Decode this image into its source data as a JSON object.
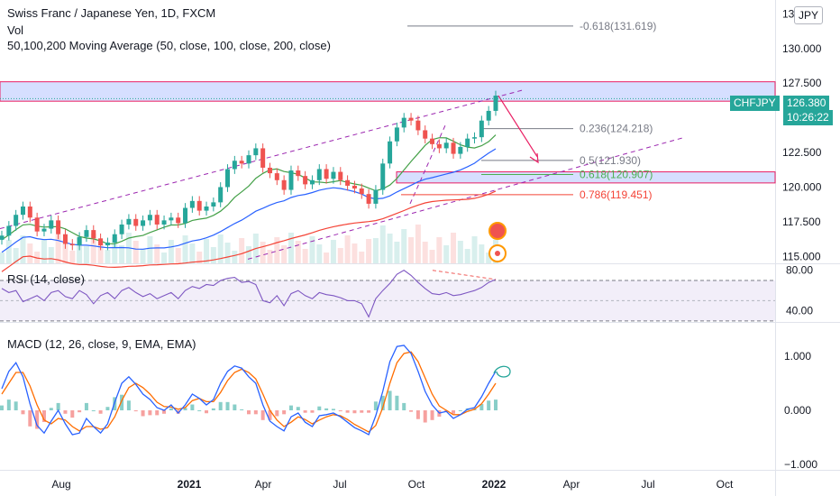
{
  "header": {
    "symbol_title": "Swiss Franc / Japanese Yen, 1D, FXCM",
    "vol_label": "Vol",
    "ma_label": "50,100,200 Moving Average (50, close, 100, close, 200, close)",
    "currency_button": "JPY"
  },
  "price_tag": {
    "symbol": "CHFJPY",
    "price": "126.380",
    "countdown": "10:26:22",
    "color": "#26a69a"
  },
  "colors": {
    "up": "#26a69a",
    "down": "#ef5350",
    "zone_fill": "#d1dbff",
    "zone_border": "#e91e63",
    "channel": "#9c27b0",
    "ma50": "#43a047",
    "ma100": "#2962ff",
    "ma200": "#f44336",
    "rsi": "#7e57c2",
    "macd": "#2962ff",
    "signal": "#ff6d00",
    "arrow": "#e91e63"
  },
  "chart_data": [
    {
      "type": "candlestick",
      "title": "Swiss Franc / Japanese Yen, 1D, FXCM",
      "ylim": [
        114.5,
        133.5
      ],
      "y_ticks": [
        "115.000",
        "117.500",
        "120.000",
        "122.500",
        "125.000",
        "127.500",
        "130.000",
        "132.500"
      ],
      "x_ticks": [
        "Aug",
        "2021",
        "Apr",
        "Jul",
        "Oct",
        "2022",
        "Apr",
        "Jul",
        "Oct"
      ],
      "last_price": 126.38,
      "resistance_zone": [
        126.2,
        127.6
      ],
      "support_zone": [
        120.3,
        121.1
      ],
      "fibonacci": [
        {
          "label": "-0.618(131.619)",
          "value": 131.619,
          "color": "#787b86"
        },
        {
          "label": "0.236(124.218)",
          "value": 124.218,
          "color": "#787b86"
        },
        {
          "label": "0.5(121.930)",
          "value": 121.93,
          "color": "#787b86"
        },
        {
          "label": "0.618(120.907)",
          "value": 120.907,
          "color": "#4caf50"
        },
        {
          "label": "0.786(119.451)",
          "value": 119.451,
          "color": "#f44336"
        }
      ],
      "series": [
        {
          "name": "MA 50",
          "color": "#43a047"
        },
        {
          "name": "MA 100",
          "color": "#2962ff"
        },
        {
          "name": "MA 200",
          "color": "#f44336"
        }
      ],
      "closes": [
        116.5,
        117.2,
        118.0,
        118.6,
        117.8,
        116.8,
        117.0,
        117.6,
        116.6,
        115.9,
        115.8,
        116.4,
        116.9,
        116.3,
        115.8,
        116.0,
        116.6,
        117.3,
        117.7,
        117.2,
        117.6,
        118.0,
        117.3,
        117.6,
        117.8,
        117.4,
        118.5,
        119.0,
        118.3,
        118.6,
        118.9,
        120.0,
        121.3,
        121.9,
        121.7,
        122.3,
        122.8,
        121.4,
        121.0,
        120.5,
        119.8,
        121.2,
        120.8,
        120.2,
        120.5,
        121.3,
        120.6,
        121.1,
        120.5,
        120.1,
        119.9,
        119.5,
        118.8,
        119.8,
        121.7,
        123.3,
        124.3,
        125.0,
        124.8,
        124.1,
        123.5,
        123.1,
        122.8,
        123.2,
        122.4,
        122.9,
        123.5,
        123.6,
        124.8,
        125.5,
        126.6
      ]
    },
    {
      "type": "line",
      "title": "RSI (14, close)",
      "y_ticks": [
        "80.00",
        "40.00"
      ],
      "ylim": [
        29,
        86
      ],
      "band": [
        30,
        70
      ],
      "values": [
        62,
        58,
        60,
        49,
        52,
        55,
        50,
        58,
        60,
        54,
        52,
        60,
        56,
        47,
        55,
        58,
        52,
        60,
        63,
        58,
        54,
        57,
        52,
        55,
        58,
        52,
        60,
        64,
        62,
        66,
        65,
        70,
        72,
        73,
        68,
        69,
        66,
        50,
        48,
        55,
        45,
        57,
        60,
        55,
        52,
        58,
        56,
        55,
        53,
        50,
        50,
        47,
        34,
        52,
        60,
        67,
        76,
        80,
        75,
        68,
        62,
        57,
        56,
        58,
        55,
        56,
        58,
        60,
        63,
        68,
        71
      ]
    },
    {
      "type": "line",
      "title": "MACD (12, 26, close, 9, EMA, EMA)",
      "y_ticks": [
        "1.000",
        "0.000",
        "−1.000"
      ],
      "ylim": [
        -1.1,
        1.45
      ],
      "series": [
        {
          "name": "MACD",
          "values": [
            0.4,
            0.72,
            0.88,
            0.62,
            0.12,
            -0.28,
            -0.42,
            -0.2,
            0.0,
            -0.25,
            -0.45,
            -0.42,
            -0.15,
            -0.3,
            -0.42,
            -0.25,
            0.15,
            0.5,
            0.62,
            0.48,
            0.3,
            0.2,
            0.05,
            0.0,
            0.1,
            -0.05,
            0.1,
            0.3,
            0.22,
            0.1,
            0.2,
            0.5,
            0.72,
            0.82,
            0.78,
            0.62,
            0.5,
            0.1,
            -0.2,
            -0.3,
            -0.38,
            -0.12,
            -0.05,
            -0.22,
            -0.3,
            -0.1,
            -0.08,
            -0.05,
            -0.12,
            -0.22,
            -0.32,
            -0.38,
            -0.45,
            -0.1,
            0.35,
            0.9,
            1.18,
            1.2,
            1.05,
            0.72,
            0.35,
            0.1,
            -0.05,
            -0.02,
            -0.15,
            -0.08,
            0.02,
            0.05,
            0.25,
            0.5,
            0.72
          ]
        },
        {
          "name": "Signal",
          "values": [
            0.3,
            0.5,
            0.7,
            0.7,
            0.45,
            0.1,
            -0.18,
            -0.25,
            -0.15,
            -0.18,
            -0.3,
            -0.38,
            -0.3,
            -0.3,
            -0.35,
            -0.32,
            -0.12,
            0.18,
            0.42,
            0.5,
            0.42,
            0.3,
            0.15,
            0.07,
            0.06,
            0.02,
            0.05,
            0.18,
            0.22,
            0.16,
            0.16,
            0.33,
            0.55,
            0.7,
            0.76,
            0.7,
            0.58,
            0.3,
            0.0,
            -0.18,
            -0.3,
            -0.22,
            -0.12,
            -0.17,
            -0.25,
            -0.18,
            -0.12,
            -0.08,
            -0.1,
            -0.17,
            -0.26,
            -0.33,
            -0.4,
            -0.28,
            0.05,
            0.5,
            0.88,
            1.05,
            1.08,
            0.9,
            0.6,
            0.3,
            0.08,
            0.0,
            -0.08,
            -0.08,
            -0.02,
            0.02,
            0.12,
            0.3,
            0.5
          ]
        }
      ]
    }
  ]
}
